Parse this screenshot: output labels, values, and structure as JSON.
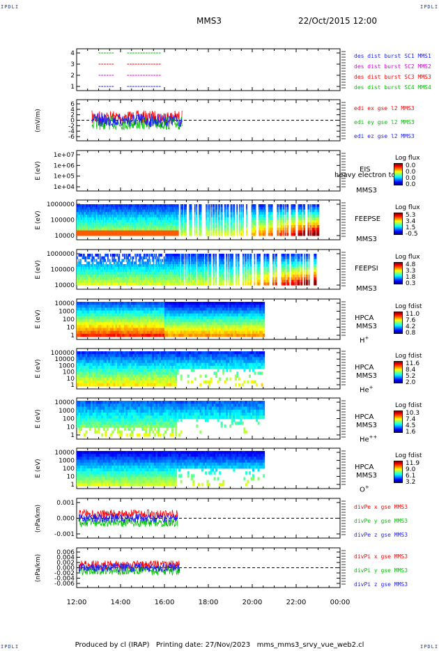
{
  "header": {
    "corner_left_top": "IPDLI",
    "corner_right_top": "IPDLI",
    "corner_left_bottom": "IPDLI",
    "corner_right_bottom": "IPDLI",
    "spacecraft": "MMS3",
    "datetime": "22/Oct/2015 12:00"
  },
  "footer": {
    "text": "Produced by cl (IRAP)   Printing date: 27/Nov/2023   mms_mms3_srvy_vue_web2.cl"
  },
  "time_axis": {
    "ticks": [
      "12:00",
      "14:00",
      "16:00",
      "18:00",
      "20:00",
      "22:00",
      "00:00"
    ]
  },
  "panels": [
    {
      "id": "burst",
      "legend": [
        "des dist burst SC1 MMS1",
        "des dist burst SC2 MMS2",
        "des dist burst SC3 MMS3",
        "des dist burst SC4 MMS4"
      ],
      "legend_colors": [
        "#1a1aff",
        "#e000e0",
        "#ff0000",
        "#00c000"
      ],
      "yticks": [
        "4",
        "3",
        "2",
        "1"
      ]
    },
    {
      "id": "edi",
      "ylabel": "(mV/m)",
      "yticks": [
        "6",
        "4",
        "2",
        "0",
        "-2",
        "-4",
        "-6"
      ],
      "legend": [
        "edi ex gse l2 MMS3",
        "edi ey gse l2 MMS3",
        "edi ez gse l2 MMS3"
      ],
      "legend_colors": [
        "#ff0000",
        "#00c000",
        "#1a1aff"
      ]
    },
    {
      "id": "eis",
      "ylabel": "E (eV)",
      "yticks": [
        "1e+07",
        "1e+06",
        "1e+05",
        "1e+04"
      ],
      "instrument": "EIS",
      "sc": "MMS3",
      "overlay": "heavy electron to",
      "cb_title": "Log flux",
      "cb_values": [
        "0.0",
        "0.0",
        "0.0",
        "0.0"
      ]
    },
    {
      "id": "feepse",
      "ylabel": "E (eV)",
      "yticks": [
        "1000000",
        "100000",
        "10000"
      ],
      "instrument": "FEEPSE",
      "sc": "MMS3",
      "cb_title": "Log flux",
      "cb_values": [
        "5.3",
        "3.4",
        "1.5",
        "-0.5"
      ]
    },
    {
      "id": "feepsi",
      "ylabel": "E (eV)",
      "yticks": [
        "1000000",
        "100000",
        "10000"
      ],
      "instrument": "FEEPSI",
      "sc": "MMS3",
      "cb_title": "Log flux",
      "cb_values": [
        "4.8",
        "3.3",
        "1.8",
        "0.3"
      ]
    },
    {
      "id": "hpca_h",
      "ylabel": "E (eV)",
      "yticks": [
        "10000",
        "1000",
        "100",
        "10",
        "1"
      ],
      "instrument": "HPCA",
      "sc": "MMS3",
      "species": "H",
      "species_sup": "+",
      "cb_title": "Log fdist",
      "cb_values": [
        "11.0",
        "7.6",
        "4.2",
        "0.8"
      ]
    },
    {
      "id": "hpca_he",
      "ylabel": "E (eV)",
      "yticks": [
        "100000",
        "10000",
        "1000",
        "100",
        "10",
        "1"
      ],
      "instrument": "HPCA",
      "sc": "MMS3",
      "species": "He",
      "species_sup": "+",
      "cb_title": "Log fdist",
      "cb_values": [
        "11.6",
        "8.4",
        "5.2",
        "2.0"
      ]
    },
    {
      "id": "hpca_hepp",
      "ylabel": "E (eV)",
      "yticks": [
        "10000",
        "1000",
        "100",
        "10",
        "1"
      ],
      "instrument": "HPCA",
      "sc": "MMS3",
      "species": "He",
      "species_sup": "++",
      "cb_title": "Log fdist",
      "cb_values": [
        "10.3",
        "7.4",
        "4.5",
        "1.6"
      ]
    },
    {
      "id": "hpca_o",
      "ylabel": "E (eV)",
      "yticks": [
        "10000",
        "1000",
        "100",
        "10",
        "1"
      ],
      "instrument": "HPCA",
      "sc": "MMS3",
      "species": "O",
      "species_sup": "+",
      "cb_title": "Log fdist",
      "cb_values": [
        "11.9",
        "9.0",
        "6.1",
        "3.2"
      ]
    },
    {
      "id": "divpe",
      "ylabel": "(nPa/km)",
      "yticks": [
        "0.001",
        "0.000",
        "-0.001"
      ],
      "legend": [
        "divPe x gse MMS3",
        "divPe y gse MMS3",
        "divPe z gse MMS3"
      ],
      "legend_colors": [
        "#ff0000",
        "#00c000",
        "#1a1aff"
      ]
    },
    {
      "id": "divpi",
      "ylabel": "(nPa/km)",
      "yticks": [
        "0.006",
        "0.004",
        "0.002",
        "0.000",
        "-0.002",
        "-0.004",
        "-0.006"
      ],
      "legend": [
        "divPi x gse MMS3",
        "divPi y gse MMS3",
        "divPi z gse MMS3"
      ],
      "legend_colors": [
        "#ff0000",
        "#00c000",
        "#1a1aff"
      ]
    }
  ]
}
